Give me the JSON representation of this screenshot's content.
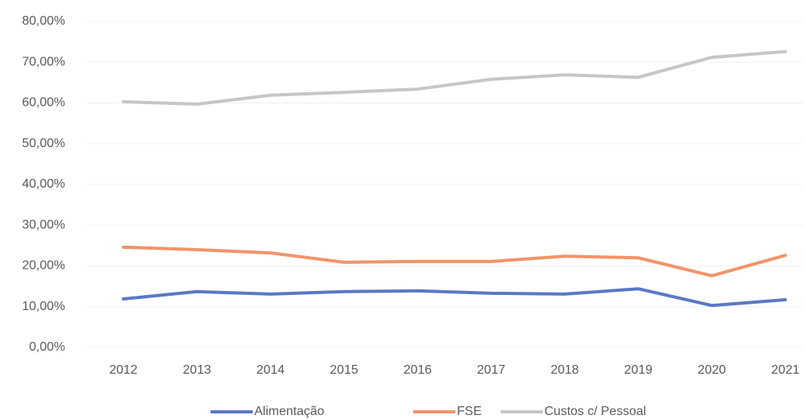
{
  "chart_data": {
    "type": "line",
    "categories": [
      "2012",
      "2013",
      "2014",
      "2015",
      "2016",
      "2017",
      "2018",
      "2019",
      "2020",
      "2021"
    ],
    "series": [
      {
        "name": "Alimentação",
        "color": "#5a78c6",
        "values": [
          11.9,
          13.7,
          13.1,
          13.7,
          13.9,
          13.3,
          13.1,
          14.4,
          10.3,
          11.7
        ]
      },
      {
        "name": "FSE",
        "color": "#f2946a",
        "values": [
          24.6,
          24.0,
          23.2,
          20.9,
          21.1,
          21.1,
          22.4,
          22.0,
          17.6,
          22.6
        ]
      },
      {
        "name": "Custos c/ Pessoal",
        "color": "#c6c6c6",
        "values": [
          60.3,
          59.7,
          61.9,
          62.6,
          63.4,
          65.8,
          66.9,
          66.3,
          71.2,
          72.6
        ]
      }
    ],
    "ylim": [
      0,
      80
    ],
    "yticks": [
      {
        "value": 0,
        "label": "0,00%"
      },
      {
        "value": 10,
        "label": "10,00%"
      },
      {
        "value": 20,
        "label": "20,00%"
      },
      {
        "value": 30,
        "label": "30,00%"
      },
      {
        "value": 40,
        "label": "40,00%"
      },
      {
        "value": 50,
        "label": "50,00%"
      },
      {
        "value": 60,
        "label": "60,00%"
      },
      {
        "value": 70,
        "label": "70,00%"
      },
      {
        "value": 80,
        "label": "80,00%"
      }
    ],
    "grid": true,
    "legend": "bottom"
  }
}
